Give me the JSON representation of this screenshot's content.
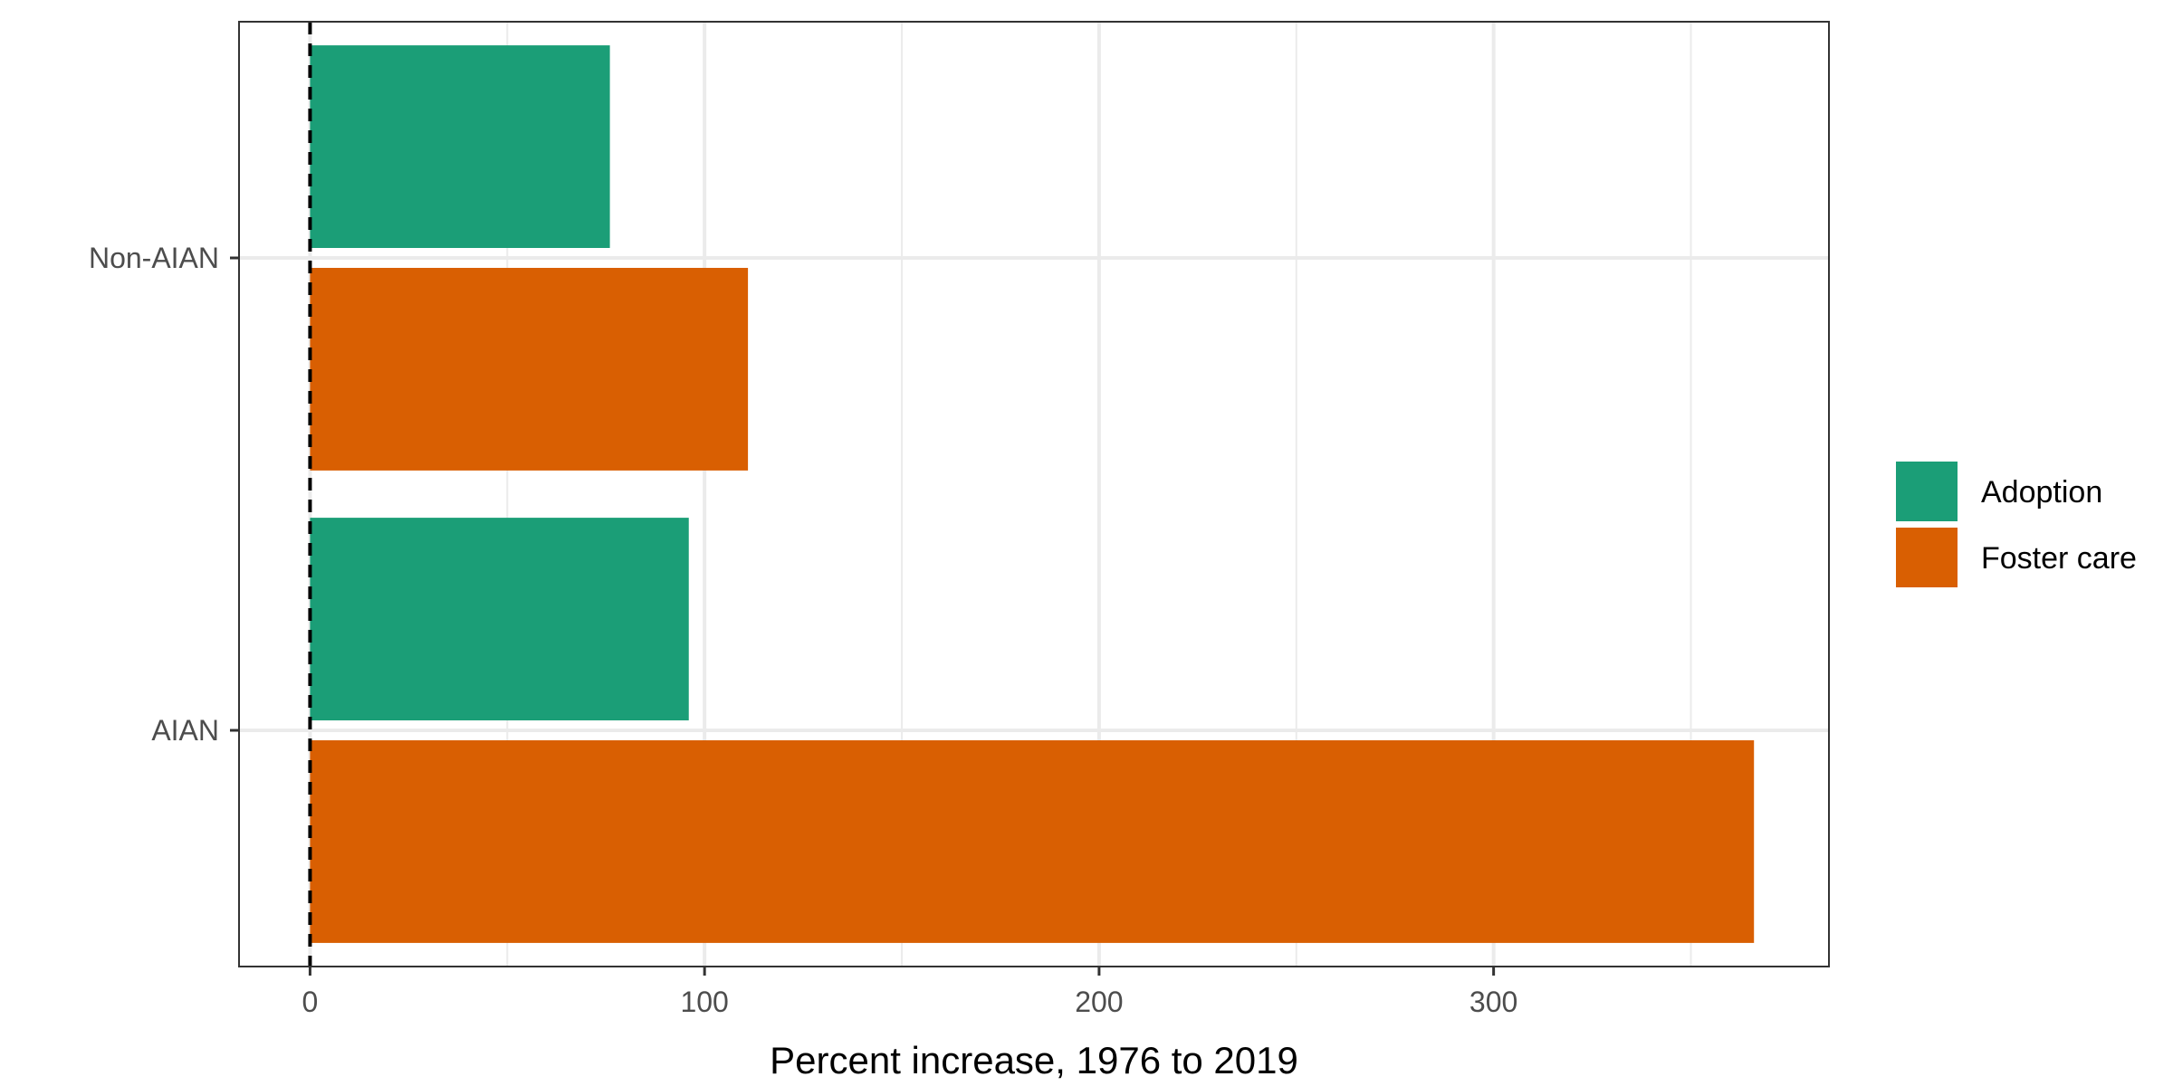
{
  "chart_data": {
    "type": "bar",
    "orientation": "horizontal",
    "categories": [
      "Non-AIAN",
      "AIAN"
    ],
    "series": [
      {
        "name": "Adoption",
        "color": "#1b9e77",
        "values": [
          76,
          96
        ]
      },
      {
        "name": "Foster care",
        "color": "#d95f02",
        "values": [
          111,
          366
        ]
      }
    ],
    "title": "",
    "xlabel": "Percent increase, 1976 to 2019",
    "ylabel": "",
    "xlim": [
      -18,
      385
    ],
    "x_ticks": [
      0,
      100,
      200,
      300
    ],
    "x_tick_labels": [
      "0",
      "100",
      "200",
      "300"
    ],
    "reference_line": {
      "x": 0,
      "style": "dashed"
    },
    "grid": true,
    "legend_position": "right"
  }
}
